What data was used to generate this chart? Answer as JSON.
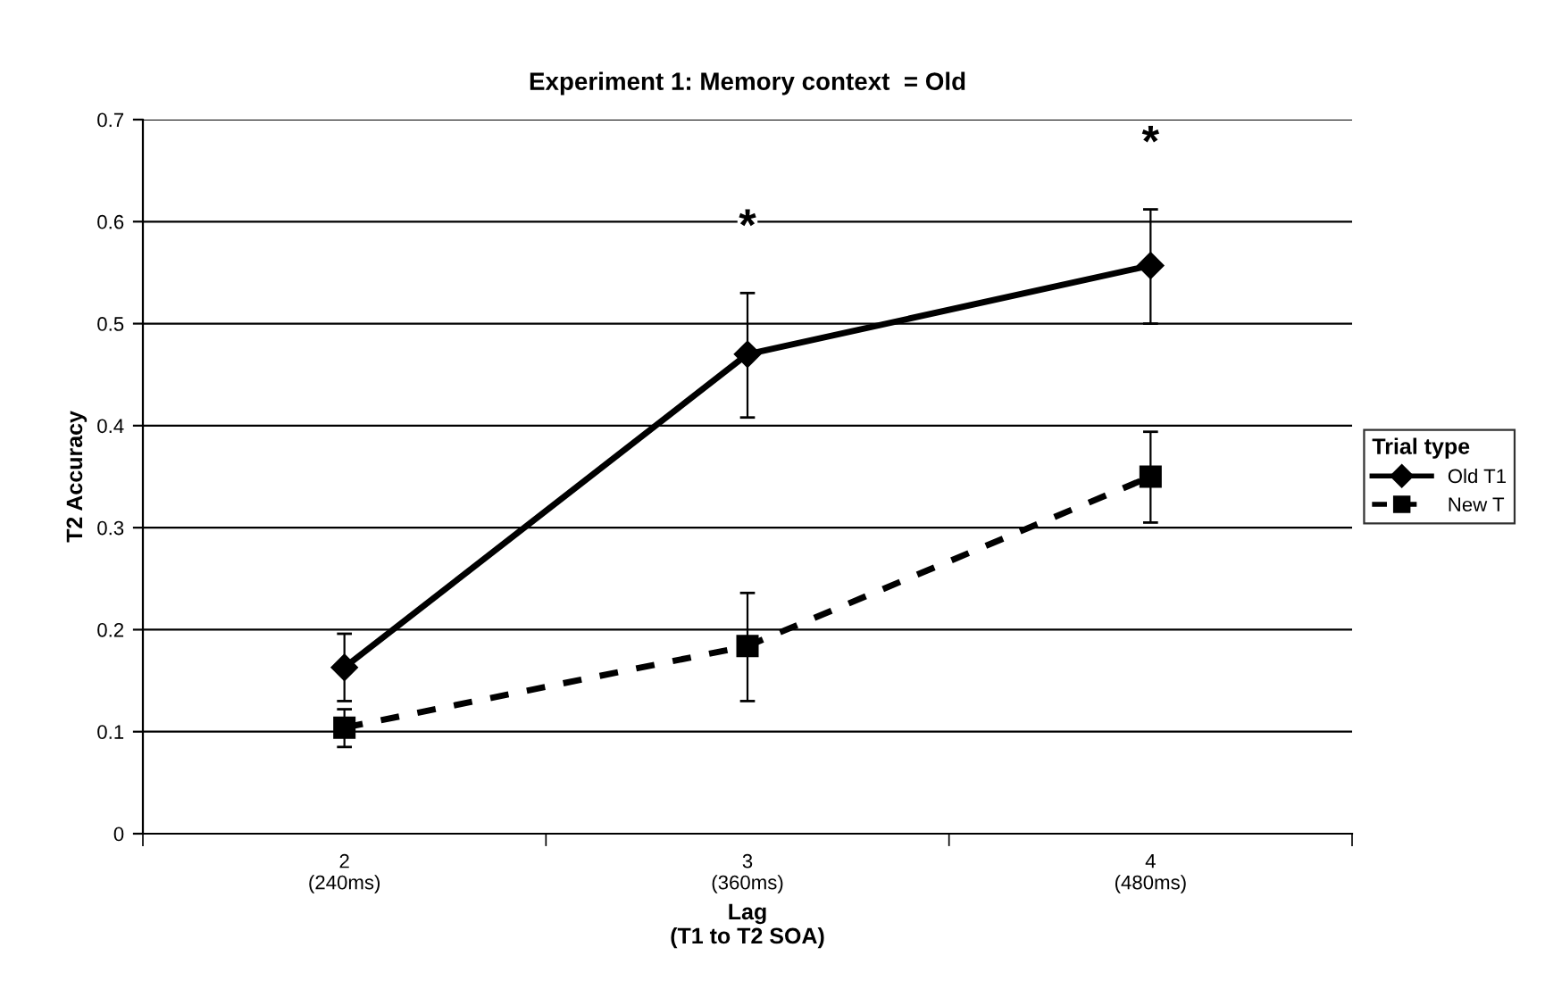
{
  "chart_data": {
    "type": "line",
    "title": "Experiment 1: Memory context  = Old",
    "xlabel": "Lag\n(T1 to T2 SOA)",
    "ylabel": "T2 Accuracy",
    "legend_title": "Trial type",
    "categories": [
      "2\n(240ms)",
      "3\n(360ms)",
      "4\n(480ms)"
    ],
    "series": [
      {
        "name": "Old T1",
        "color": "#000000",
        "values": [
          0.163,
          0.47,
          0.557
        ],
        "errors": [
          [
            0.13,
            0.196
          ],
          [
            0.408,
            0.53
          ],
          [
            0.5,
            0.612
          ]
        ],
        "marker": "diamond",
        "line_style": "solid"
      },
      {
        "name": "New T",
        "color": "#000000",
        "values": [
          0.104,
          0.184,
          0.35
        ],
        "errors": [
          [
            0.085,
            0.122
          ],
          [
            0.13,
            0.236
          ],
          [
            0.305,
            0.394
          ]
        ],
        "marker": "square",
        "line_style": "dashed"
      }
    ],
    "annotations": [
      "*",
      "*"
    ],
    "ylim": [
      0,
      0.7
    ],
    "yticks": [
      0,
      0.1,
      0.2,
      0.3,
      0.4,
      0.5,
      0.6,
      0.7
    ],
    "grid": "y",
    "legend": "right"
  }
}
